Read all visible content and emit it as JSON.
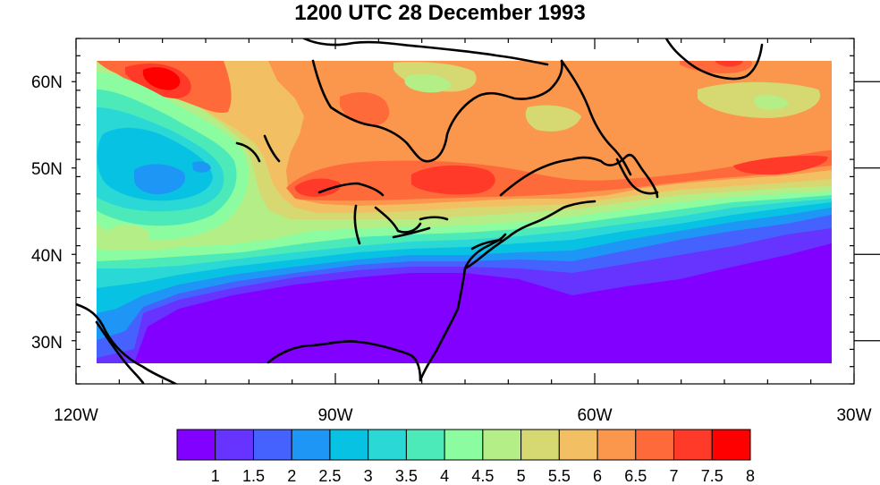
{
  "title": "1200 UTC 28 December 1993",
  "lat_labels": [
    "60N",
    "50N",
    "40N",
    "30N"
  ],
  "lon_labels": [
    "120W",
    "90W",
    "60W",
    "30W"
  ],
  "colorbar": {
    "colors": [
      "#8200ff",
      "#6733ff",
      "#4562ff",
      "#1e96f5",
      "#08c2e3",
      "#2ad8d6",
      "#4ceab9",
      "#8cfca0",
      "#b4ee86",
      "#d6d872",
      "#f2c063",
      "#fb964d",
      "#ff6a3a",
      "#ff3a28",
      "#ff0000"
    ],
    "labels": [
      "1",
      "1.5",
      "2",
      "2.5",
      "3",
      "3.5",
      "4",
      "4.5",
      "5",
      "5.5",
      "6",
      "6.5",
      "7",
      "7.5",
      "8"
    ]
  },
  "map": {
    "lon_range": [
      -120,
      -30
    ],
    "lat_range": [
      25,
      65
    ],
    "data_lon_range": [
      -117.5,
      -32.5
    ],
    "data_lat_range": [
      27.5,
      62.5
    ],
    "coastlines": "black"
  }
}
